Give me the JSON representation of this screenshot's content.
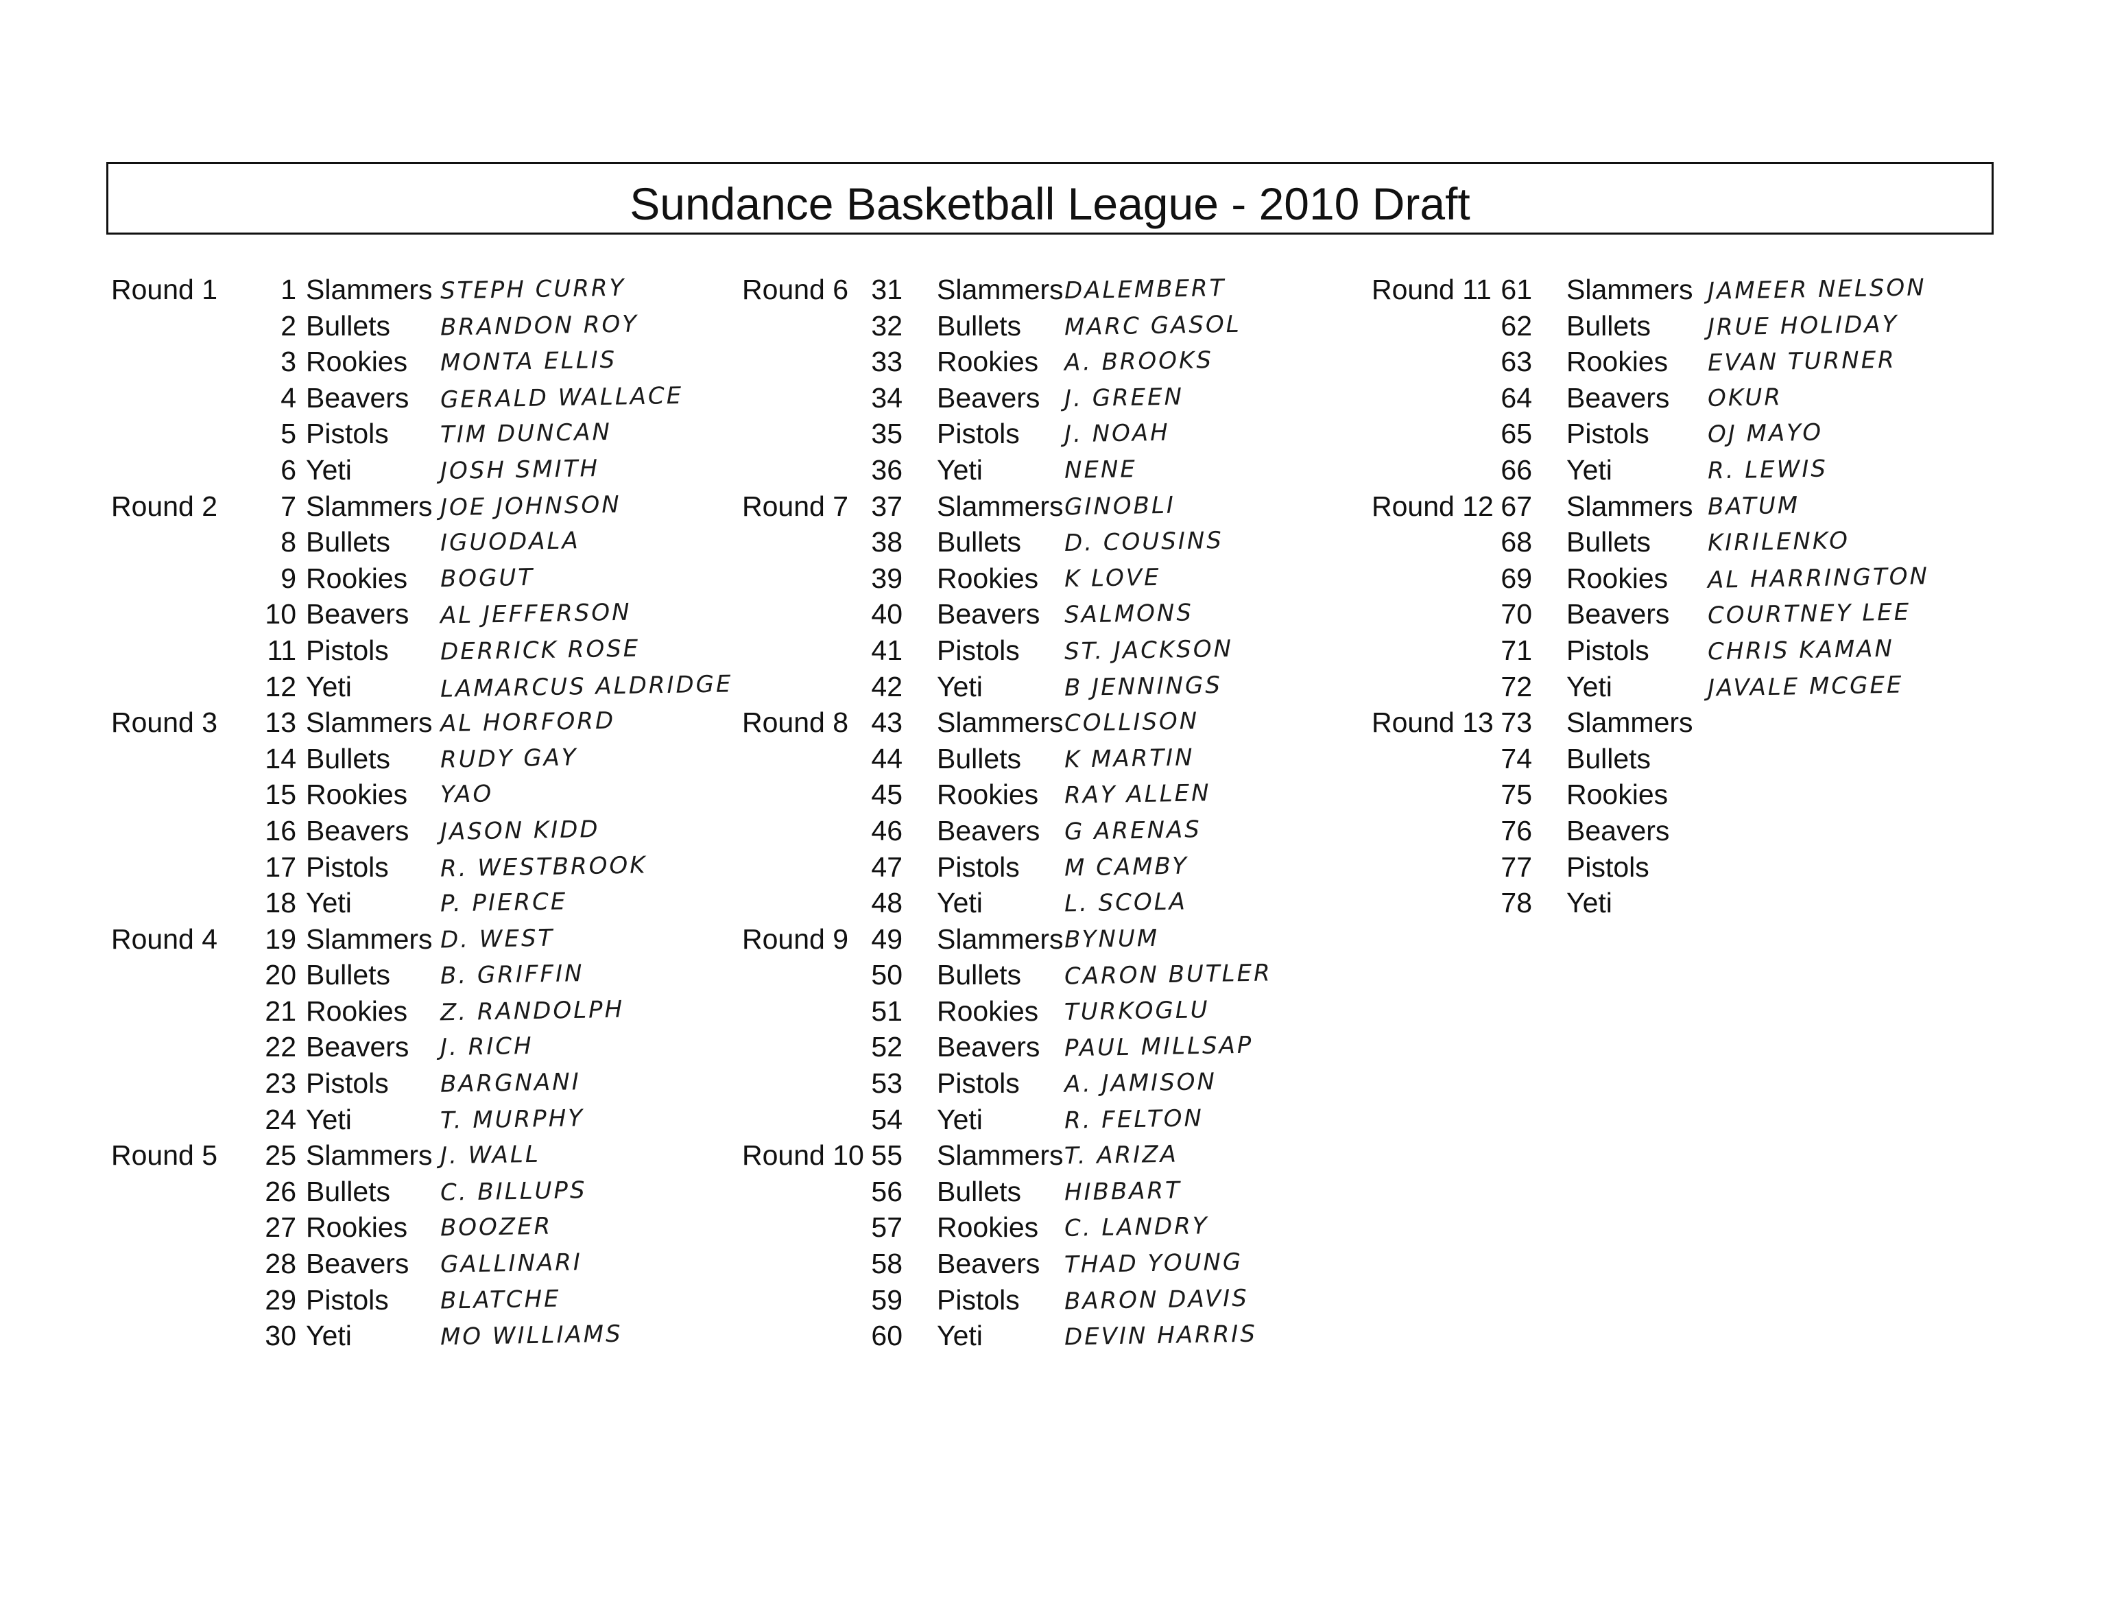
{
  "title": "Sundance Basketball League - 2010 Draft",
  "columns": [
    {
      "rounds": [
        {
          "label": "Round 1",
          "picks": [
            {
              "number": "1",
              "team": "Slammers",
              "player": "Steph Curry"
            },
            {
              "number": "2",
              "team": "Bullets",
              "player": "Brandon Roy"
            },
            {
              "number": "3",
              "team": "Rookies",
              "player": "Monta Ellis"
            },
            {
              "number": "4",
              "team": "Beavers",
              "player": "Gerald Wallace"
            },
            {
              "number": "5",
              "team": "Pistols",
              "player": "Tim Duncan"
            },
            {
              "number": "6",
              "team": "Yeti",
              "player": "Josh Smith"
            }
          ]
        },
        {
          "label": "Round 2",
          "picks": [
            {
              "number": "7",
              "team": "Slammers",
              "player": "Joe Johnson"
            },
            {
              "number": "8",
              "team": "Bullets",
              "player": "Iguodala"
            },
            {
              "number": "9",
              "team": "Rookies",
              "player": "Bogut"
            },
            {
              "number": "10",
              "team": "Beavers",
              "player": "Al Jefferson"
            },
            {
              "number": "11",
              "team": "Pistols",
              "player": "Derrick Rose"
            },
            {
              "number": "12",
              "team": "Yeti",
              "player": "LaMarcus Aldridge"
            }
          ]
        },
        {
          "label": "Round 3",
          "picks": [
            {
              "number": "13",
              "team": "Slammers",
              "player": "Al Horford"
            },
            {
              "number": "14",
              "team": "Bullets",
              "player": "Rudy Gay"
            },
            {
              "number": "15",
              "team": "Rookies",
              "player": "Yao"
            },
            {
              "number": "16",
              "team": "Beavers",
              "player": "Jason Kidd"
            },
            {
              "number": "17",
              "team": "Pistols",
              "player": "R. Westbrook"
            },
            {
              "number": "18",
              "team": "Yeti",
              "player": "P. Pierce"
            }
          ]
        },
        {
          "label": "Round 4",
          "picks": [
            {
              "number": "19",
              "team": "Slammers",
              "player": "D. West"
            },
            {
              "number": "20",
              "team": "Bullets",
              "player": "B. Griffin"
            },
            {
              "number": "21",
              "team": "Rookies",
              "player": "Z. Randolph"
            },
            {
              "number": "22",
              "team": "Beavers",
              "player": "J. Rich"
            },
            {
              "number": "23",
              "team": "Pistols",
              "player": "Bargnani"
            },
            {
              "number": "24",
              "team": "Yeti",
              "player": "T. Murphy"
            }
          ]
        },
        {
          "label": "Round 5",
          "picks": [
            {
              "number": "25",
              "team": "Slammers",
              "player": "J. Wall"
            },
            {
              "number": "26",
              "team": "Bullets",
              "player": "C. Billups"
            },
            {
              "number": "27",
              "team": "Rookies",
              "player": "Boozer"
            },
            {
              "number": "28",
              "team": "Beavers",
              "player": "Gallinari"
            },
            {
              "number": "29",
              "team": "Pistols",
              "player": "Blatche"
            },
            {
              "number": "30",
              "team": "Yeti",
              "player": "Mo Williams"
            }
          ]
        }
      ]
    },
    {
      "rounds": [
        {
          "label": "Round 6",
          "picks": [
            {
              "number": "31",
              "team": "Slammers",
              "player": "Dalembert"
            },
            {
              "number": "32",
              "team": "Bullets",
              "player": "Marc Gasol"
            },
            {
              "number": "33",
              "team": "Rookies",
              "player": "A. Brooks"
            },
            {
              "number": "34",
              "team": "Beavers",
              "player": "J. Green"
            },
            {
              "number": "35",
              "team": "Pistols",
              "player": "J. Noah"
            },
            {
              "number": "36",
              "team": "Yeti",
              "player": "Nene"
            }
          ]
        },
        {
          "label": "Round 7",
          "picks": [
            {
              "number": "37",
              "team": "Slammers",
              "player": "Ginobli"
            },
            {
              "number": "38",
              "team": "Bullets",
              "player": "D. Cousins"
            },
            {
              "number": "39",
              "team": "Rookies",
              "player": "K Love"
            },
            {
              "number": "40",
              "team": "Beavers",
              "player": "Salmons"
            },
            {
              "number": "41",
              "team": "Pistols",
              "player": "St. Jackson"
            },
            {
              "number": "42",
              "team": "Yeti",
              "player": "B Jennings"
            }
          ]
        },
        {
          "label": "Round 8",
          "picks": [
            {
              "number": "43",
              "team": "Slammers",
              "player": "Collison"
            },
            {
              "number": "44",
              "team": "Bullets",
              "player": "K Martin"
            },
            {
              "number": "45",
              "team": "Rookies",
              "player": "Ray Allen"
            },
            {
              "number": "46",
              "team": "Beavers",
              "player": "G Arenas"
            },
            {
              "number": "47",
              "team": "Pistols",
              "player": "M Camby"
            },
            {
              "number": "48",
              "team": "Yeti",
              "player": "L. Scola"
            }
          ]
        },
        {
          "label": "Round 9",
          "picks": [
            {
              "number": "49",
              "team": "Slammers",
              "player": "Bynum"
            },
            {
              "number": "50",
              "team": "Bullets",
              "player": "Caron Butler"
            },
            {
              "number": "51",
              "team": "Rookies",
              "player": "Turkoglu"
            },
            {
              "number": "52",
              "team": "Beavers",
              "player": "Paul Millsap"
            },
            {
              "number": "53",
              "team": "Pistols",
              "player": "A. Jamison"
            },
            {
              "number": "54",
              "team": "Yeti",
              "player": "R. Felton"
            }
          ]
        },
        {
          "label": "Round 10",
          "picks": [
            {
              "number": "55",
              "team": "Slammers",
              "player": "T. Ariza"
            },
            {
              "number": "56",
              "team": "Bullets",
              "player": "Hibbart"
            },
            {
              "number": "57",
              "team": "Rookies",
              "player": "C. Landry"
            },
            {
              "number": "58",
              "team": "Beavers",
              "player": "Thad Young"
            },
            {
              "number": "59",
              "team": "Pistols",
              "player": "Baron Davis"
            },
            {
              "number": "60",
              "team": "Yeti",
              "player": "Devin Harris"
            }
          ]
        }
      ]
    },
    {
      "rounds": [
        {
          "label": "Round 11",
          "picks": [
            {
              "number": "61",
              "team": "Slammers",
              "player": "Jameer Nelson"
            },
            {
              "number": "62",
              "team": "Bullets",
              "player": "Jrue Holiday"
            },
            {
              "number": "63",
              "team": "Rookies",
              "player": "Evan Turner"
            },
            {
              "number": "64",
              "team": "Beavers",
              "player": "Okur"
            },
            {
              "number": "65",
              "team": "Pistols",
              "player": "OJ Mayo"
            },
            {
              "number": "66",
              "team": "Yeti",
              "player": "R. Lewis"
            }
          ]
        },
        {
          "label": "Round 12",
          "picks": [
            {
              "number": "67",
              "team": "Slammers",
              "player": "Batum"
            },
            {
              "number": "68",
              "team": "Bullets",
              "player": "Kirilenko"
            },
            {
              "number": "69",
              "team": "Rookies",
              "player": "Al Harrington"
            },
            {
              "number": "70",
              "team": "Beavers",
              "player": "Courtney Lee"
            },
            {
              "number": "71",
              "team": "Pistols",
              "player": "Chris Kaman"
            },
            {
              "number": "72",
              "team": "Yeti",
              "player": "JaVale McGee"
            }
          ]
        },
        {
          "label": "Round 13",
          "picks": [
            {
              "number": "73",
              "team": "Slammers",
              "player": ""
            },
            {
              "number": "74",
              "team": "Bullets",
              "player": ""
            },
            {
              "number": "75",
              "team": "Rookies",
              "player": ""
            },
            {
              "number": "76",
              "team": "Beavers",
              "player": ""
            },
            {
              "number": "77",
              "team": "Pistols",
              "player": ""
            },
            {
              "number": "78",
              "team": "Yeti",
              "player": ""
            }
          ]
        }
      ]
    }
  ]
}
